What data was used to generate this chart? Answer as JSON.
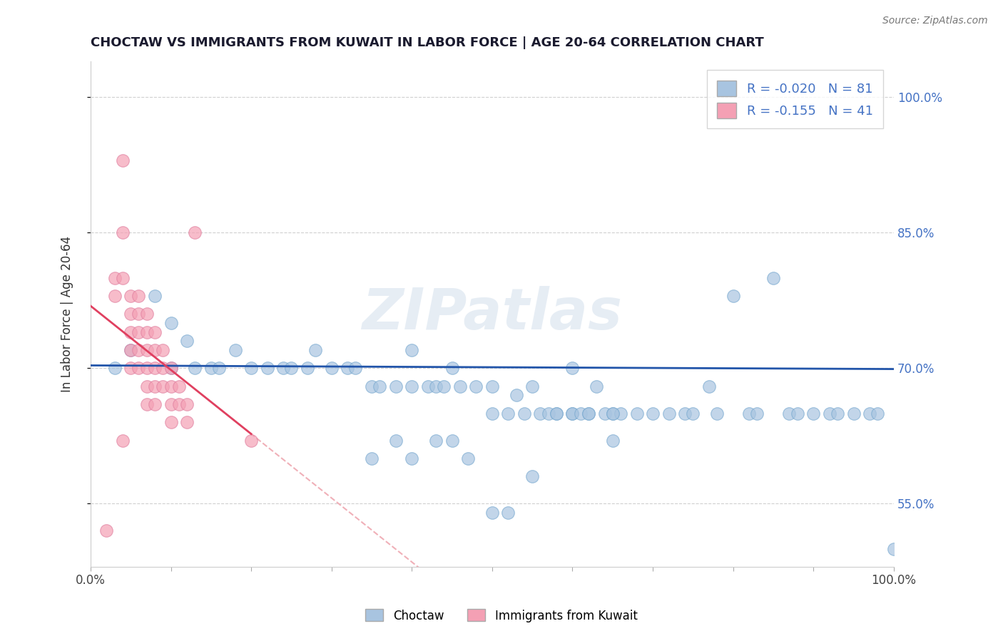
{
  "title": "CHOCTAW VS IMMIGRANTS FROM KUWAIT IN LABOR FORCE | AGE 20-64 CORRELATION CHART",
  "source": "Source: ZipAtlas.com",
  "ylabel": "In Labor Force | Age 20-64",
  "xlim": [
    0.0,
    1.0
  ],
  "ylim": [
    0.48,
    1.04
  ],
  "yticks": [
    0.55,
    0.7,
    0.85,
    1.0
  ],
  "ytick_labels": [
    "55.0%",
    "70.0%",
    "85.0%",
    "100.0%"
  ],
  "blue_R": -0.02,
  "blue_N": 81,
  "pink_R": -0.155,
  "pink_N": 41,
  "blue_color": "#a8c4e0",
  "pink_color": "#f4a0b4",
  "blue_line_color": "#2255aa",
  "pink_line_color": "#e04060",
  "pink_dash_color": "#f0b0b8",
  "watermark": "ZIPatlas",
  "legend_labels": [
    "Choctaw",
    "Immigrants from Kuwait"
  ],
  "blue_scatter_x": [
    0.03,
    0.05,
    0.08,
    0.1,
    0.1,
    0.12,
    0.13,
    0.15,
    0.16,
    0.18,
    0.2,
    0.22,
    0.24,
    0.25,
    0.27,
    0.28,
    0.3,
    0.32,
    0.33,
    0.35,
    0.36,
    0.38,
    0.4,
    0.4,
    0.42,
    0.43,
    0.44,
    0.45,
    0.46,
    0.48,
    0.5,
    0.5,
    0.52,
    0.53,
    0.54,
    0.55,
    0.56,
    0.57,
    0.58,
    0.6,
    0.6,
    0.61,
    0.62,
    0.63,
    0.64,
    0.65,
    0.65,
    0.66,
    0.68,
    0.7,
    0.72,
    0.74,
    0.75,
    0.77,
    0.78,
    0.8,
    0.82,
    0.83,
    0.85,
    0.87,
    0.88,
    0.9,
    0.92,
    0.93,
    0.95,
    0.97,
    0.98,
    1.0,
    0.35,
    0.38,
    0.4,
    0.43,
    0.45,
    0.47,
    0.5,
    0.52,
    0.55,
    0.58,
    0.6,
    0.62,
    0.65
  ],
  "blue_scatter_y": [
    0.7,
    0.72,
    0.78,
    0.75,
    0.7,
    0.73,
    0.7,
    0.7,
    0.7,
    0.72,
    0.7,
    0.7,
    0.7,
    0.7,
    0.7,
    0.72,
    0.7,
    0.7,
    0.7,
    0.68,
    0.68,
    0.68,
    0.68,
    0.72,
    0.68,
    0.68,
    0.68,
    0.7,
    0.68,
    0.68,
    0.68,
    0.65,
    0.65,
    0.67,
    0.65,
    0.68,
    0.65,
    0.65,
    0.65,
    0.65,
    0.65,
    0.65,
    0.65,
    0.68,
    0.65,
    0.62,
    0.65,
    0.65,
    0.65,
    0.65,
    0.65,
    0.65,
    0.65,
    0.68,
    0.65,
    0.78,
    0.65,
    0.65,
    0.8,
    0.65,
    0.65,
    0.65,
    0.65,
    0.65,
    0.65,
    0.65,
    0.65,
    0.5,
    0.6,
    0.62,
    0.6,
    0.62,
    0.62,
    0.6,
    0.54,
    0.54,
    0.58,
    0.65,
    0.7,
    0.65,
    0.65
  ],
  "pink_scatter_x": [
    0.02,
    0.03,
    0.03,
    0.04,
    0.04,
    0.04,
    0.05,
    0.05,
    0.05,
    0.05,
    0.05,
    0.06,
    0.06,
    0.06,
    0.06,
    0.06,
    0.07,
    0.07,
    0.07,
    0.07,
    0.07,
    0.07,
    0.08,
    0.08,
    0.08,
    0.08,
    0.08,
    0.09,
    0.09,
    0.09,
    0.1,
    0.1,
    0.1,
    0.1,
    0.11,
    0.11,
    0.12,
    0.12,
    0.13,
    0.2,
    0.04
  ],
  "pink_scatter_y": [
    0.52,
    0.8,
    0.78,
    0.93,
    0.85,
    0.8,
    0.78,
    0.76,
    0.74,
    0.72,
    0.7,
    0.78,
    0.76,
    0.74,
    0.72,
    0.7,
    0.76,
    0.74,
    0.72,
    0.7,
    0.68,
    0.66,
    0.74,
    0.72,
    0.7,
    0.68,
    0.66,
    0.72,
    0.7,
    0.68,
    0.7,
    0.68,
    0.66,
    0.64,
    0.68,
    0.66,
    0.66,
    0.64,
    0.85,
    0.62,
    0.62
  ]
}
